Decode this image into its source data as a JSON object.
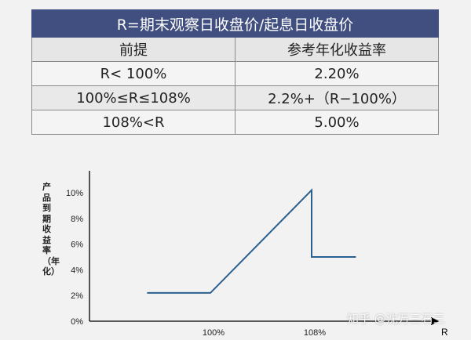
{
  "table": {
    "title": "R=期末观察日收盘价/起息日收盘价",
    "headers": [
      "前提",
      "参考年化收益率"
    ],
    "rows": [
      {
        "condition": "R< 100%",
        "rate": "2.20%"
      },
      {
        "condition": "100%≤R≤108%",
        "rate": "2.2%+（R−100%）"
      },
      {
        "condition": "108%<R",
        "rate": "5.00%"
      }
    ]
  },
  "chart_data": {
    "type": "line",
    "ylabel": "产品到期收益率（年化）",
    "xlabel": "R",
    "y_ticks": [
      "0%",
      "2%",
      "4%",
      "6%",
      "8%",
      "10%"
    ],
    "x_ticks": [
      "100%",
      "108%"
    ],
    "series": [
      {
        "points": [
          {
            "x": 0.95,
            "y": 2.2
          },
          {
            "x": 1.0,
            "y": 2.2
          },
          {
            "x": 1.08,
            "y": 10.2
          },
          {
            "x": 1.08,
            "y": 5.0
          },
          {
            "x": 1.115,
            "y": 5.0
          }
        ]
      }
    ],
    "ylim": [
      0,
      10
    ],
    "line_color": "#2b5f8e"
  },
  "watermark": "知乎 @沈万三石三"
}
